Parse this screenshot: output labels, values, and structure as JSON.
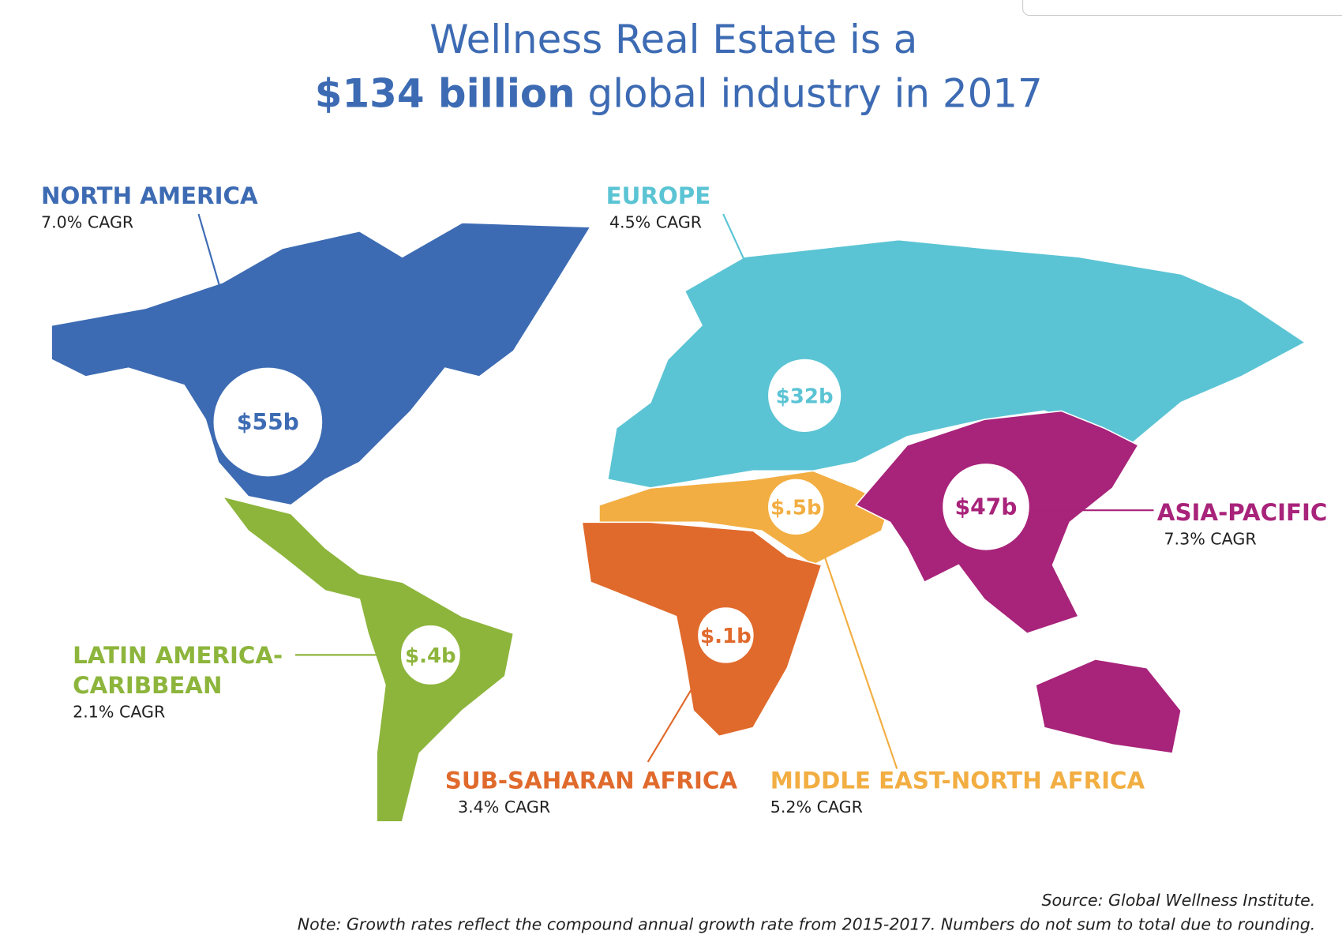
{
  "title": {
    "line1": "Wellness Real Estate is a",
    "line2_bold": "$134 billion",
    "line2_rest": "global industry in 2017"
  },
  "regions": [
    {
      "name": [
        "NORTH AMERICA"
      ],
      "cagr": "7.0% CAGR",
      "value": "$55b",
      "color": "#3d6bb3"
    },
    {
      "name": [
        "EUROPE"
      ],
      "cagr": "4.5% CAGR",
      "value": "$32b",
      "color": "#5bc4d4"
    },
    {
      "name": [
        "ASIA-PACIFIC"
      ],
      "cagr": "7.3% CAGR",
      "value": "$47b",
      "color": "#a8237a"
    },
    {
      "name": [
        "MIDDLE EAST-NORTH AFRICA"
      ],
      "cagr": "5.2% CAGR",
      "value": "$.5b",
      "color": "#f2ae42"
    },
    {
      "name": [
        "SUB-SAHARAN AFRICA"
      ],
      "cagr": "3.4% CAGR",
      "value": "$.1b",
      "color": "#e06a2c"
    },
    {
      "name": [
        "LATIN AMERICA-",
        "CARIBBEAN"
      ],
      "cagr": "2.1% CAGR",
      "value": "$.4b",
      "color": "#8db53c"
    }
  ],
  "source": "Source: Global Wellness Institute.",
  "note": "Note: Growth rates reflect the compound annual growth rate from 2015-2017. Numbers do not sum to total due to rounding."
}
